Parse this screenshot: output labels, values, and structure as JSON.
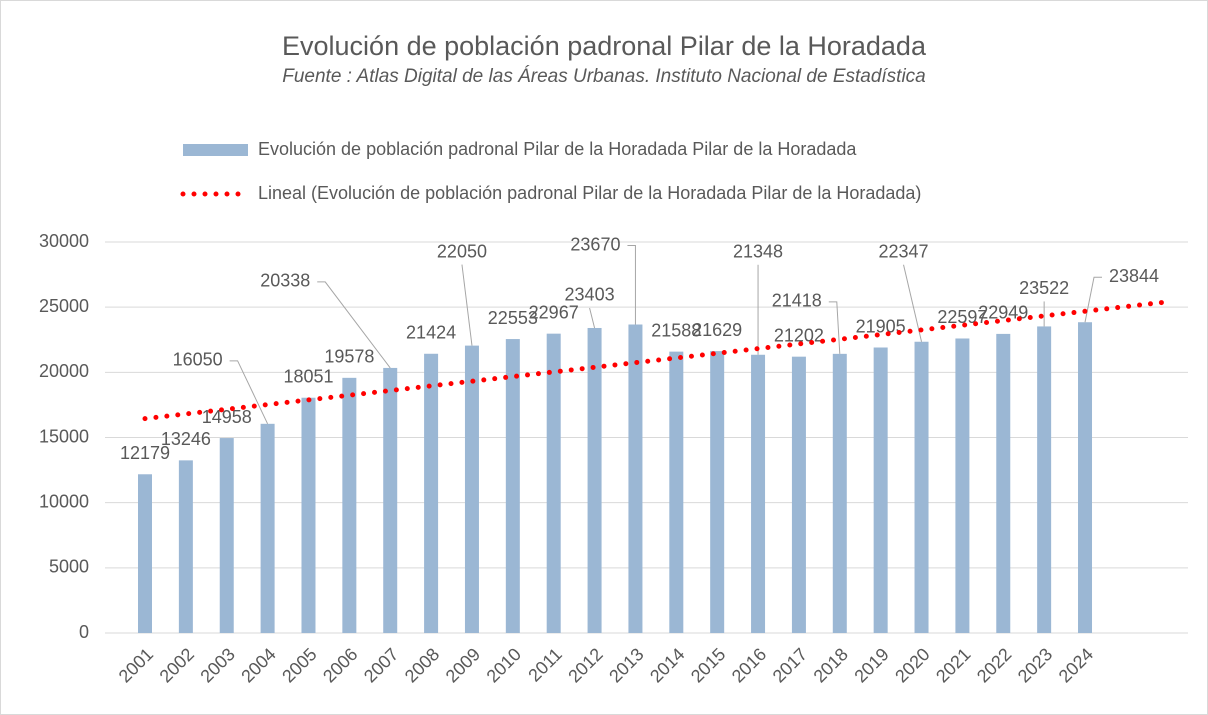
{
  "chart_data": {
    "type": "bar",
    "title": "Evolución de población padronal Pilar de la Horadada",
    "subtitle": "Fuente : Atlas Digital de las Áreas Urbanas. Instituto Nacional de Estadística",
    "categories": [
      "2001",
      "2002",
      "2003",
      "2004",
      "2005",
      "2006",
      "2007",
      "2008",
      "2009",
      "2010",
      "2011",
      "2012",
      "2013",
      "2014",
      "2015",
      "2016",
      "2017",
      "2018",
      "2019",
      "2020",
      "2021",
      "2022",
      "2023",
      "2024",
      null,
      null
    ],
    "series": [
      {
        "name": "Evolución de población padronal Pilar de la Horadada Pilar de la Horadada",
        "color": "#9bb7d4",
        "values": [
          12179,
          13246,
          14958,
          16050,
          18051,
          19578,
          20338,
          21424,
          22050,
          22553,
          22967,
          23403,
          23670,
          21588,
          21629,
          21348,
          21202,
          21418,
          21905,
          22347,
          22597,
          22949,
          23522,
          23844,
          null,
          null
        ]
      },
      {
        "name": "Lineal (Evolución de población padronal Pilar de la Horadada Pilar de la Horadada)",
        "color": "#ff0000",
        "type": "trendline",
        "values": [
          16450,
          16808,
          17166,
          17524,
          17882,
          18240,
          18598,
          18956,
          19314,
          19672,
          20030,
          20388,
          20746,
          21104,
          21462,
          21820,
          22178,
          22536,
          22894,
          23252,
          23610,
          23968,
          24326,
          24684,
          25042,
          25400
        ]
      }
    ],
    "ylim": [
      0,
      30000
    ],
    "yticks": [
      0,
      5000,
      10000,
      15000,
      20000,
      25000,
      30000
    ],
    "grid": true
  }
}
